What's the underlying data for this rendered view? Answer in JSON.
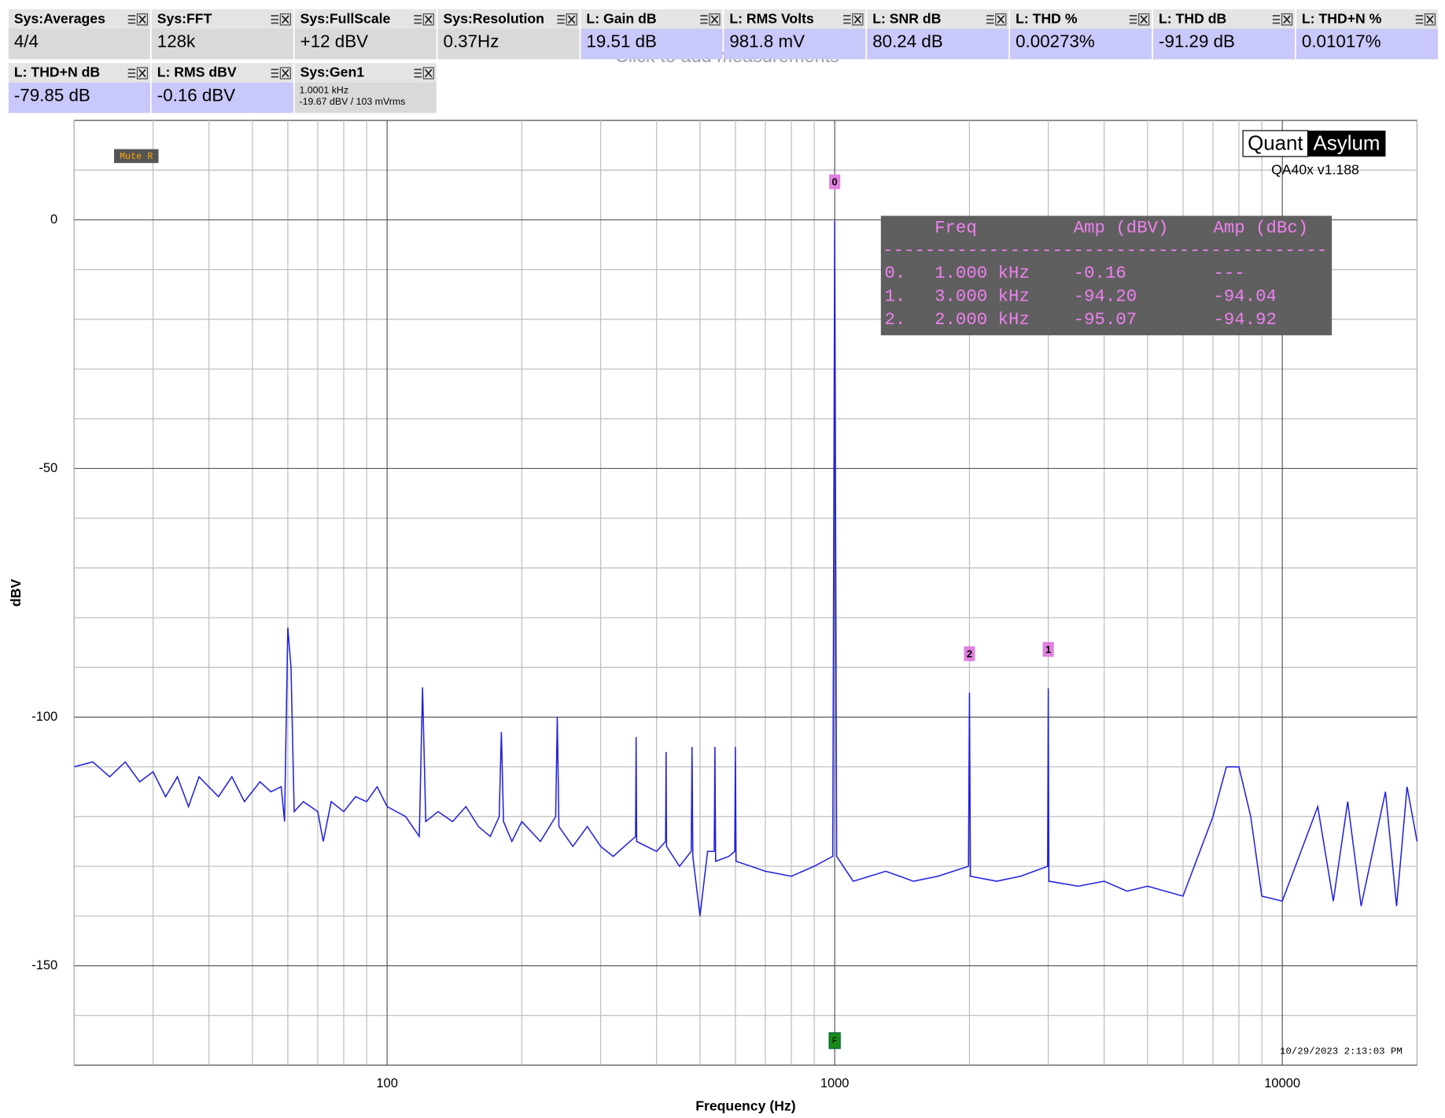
{
  "ghost_text": "Click to add measurements",
  "measurements": [
    [
      {
        "label": "Sys:Averages",
        "value": "4/4",
        "color": "#d9d9d9"
      },
      {
        "label": "Sys:FFT",
        "value": "128k",
        "color": "#d9d9d9"
      },
      {
        "label": "Sys:FullScale",
        "value": "+12 dBV",
        "color": "#d9d9d9"
      },
      {
        "label": "Sys:Resolution",
        "value": "0.37Hz",
        "color": "#d9d9d9"
      },
      {
        "label": "L: Gain dB",
        "value": "19.51 dB",
        "color": "#c8c8fa"
      },
      {
        "label": "L: RMS Volts",
        "value": "981.8 mV",
        "color": "#c8c8fa"
      },
      {
        "label": "L: SNR dB",
        "value": "80.24 dB",
        "color": "#c8c8fa"
      },
      {
        "label": "L: THD %",
        "value": "0.00273%",
        "color": "#c8c8fa"
      },
      {
        "label": "L: THD dB",
        "value": "-91.29 dB",
        "color": "#c8c8fa"
      },
      {
        "label": "L: THD+N %",
        "value": "0.01017%",
        "color": "#c8c8fa"
      }
    ],
    [
      {
        "label": "L: THD+N dB",
        "value": "-79.85 dB",
        "color": "#c8c8fa"
      },
      {
        "label": "L: RMS dBV",
        "value": "-0.16 dBV",
        "color": "#c8c8fa"
      },
      {
        "label": "Sys:Gen1",
        "value_lines": [
          "1.0001 kHz",
          "-19.67 dBV  / 103 mVrms"
        ],
        "color": "#d9d9d9"
      }
    ]
  ],
  "mute_label": "Mute R",
  "logo_left": "Quant",
  "logo_right": "Asylum",
  "version": "QA40x v1.188",
  "timestamp": "10/29/2023 2:13:03 PM",
  "peak_table": {
    "header": [
      "Freq",
      "Amp (dBV)",
      "Amp (dBc)"
    ],
    "separator": "------------------------------------------",
    "rows": [
      [
        "0.",
        "1.000 kHz",
        "-0.16",
        "---"
      ],
      [
        "1.",
        "3.000 kHz",
        "-94.20",
        "-94.04"
      ],
      [
        "2.",
        "2.000 kHz",
        "-95.07",
        "-94.92"
      ]
    ]
  },
  "chart_data": {
    "type": "line",
    "x_label": "Frequency (Hz)",
    "y_label": "dBV",
    "log_x": true,
    "grid": true,
    "color": "#2020e0",
    "xlim": [
      20,
      20000
    ],
    "ylim": [
      -170,
      20
    ],
    "xticks": [
      100,
      1000,
      10000
    ],
    "xminorticks": [
      20,
      30,
      40,
      50,
      60,
      70,
      80,
      90,
      200,
      300,
      400,
      500,
      600,
      700,
      800,
      900,
      2000,
      3000,
      4000,
      5000,
      6000,
      7000,
      8000,
      9000,
      20000
    ],
    "yticks": [
      0,
      -50,
      -100,
      -150
    ],
    "yminorticks": [
      10,
      -10,
      -20,
      -30,
      -40,
      -60,
      -70,
      -80,
      -90,
      -110,
      -120,
      -130,
      -140,
      -160
    ],
    "x": [
      20,
      22,
      24,
      26,
      28,
      30,
      32,
      34,
      36,
      38,
      42,
      45,
      48,
      52,
      55,
      58,
      59,
      60,
      61,
      62,
      65,
      70,
      72,
      75,
      80,
      85,
      90,
      95,
      100,
      110,
      118,
      120,
      122,
      130,
      140,
      150,
      160,
      170,
      178,
      180,
      182,
      190,
      200,
      220,
      238,
      240,
      242,
      260,
      280,
      300,
      320,
      359,
      360,
      361,
      400,
      419,
      420,
      421,
      450,
      478,
      480,
      482,
      500,
      520,
      538,
      540,
      542,
      580,
      598,
      600,
      602,
      650,
      700,
      800,
      900,
      990,
      1000,
      1010,
      1100,
      1300,
      1500,
      1700,
      1990,
      2000,
      2010,
      2300,
      2600,
      2990,
      3000,
      3010,
      3500,
      4000,
      4500,
      5000,
      6000,
      7000,
      7500,
      8000,
      8500,
      9000,
      10000,
      12000,
      13000,
      14000,
      15000,
      17000,
      18000,
      19000,
      20000
    ],
    "values": [
      -110,
      -109,
      -112,
      -109,
      -113,
      -111,
      -116,
      -112,
      -118,
      -112,
      -116,
      -112,
      -117,
      -113,
      -115,
      -114,
      -121,
      -82,
      -90,
      -119,
      -117,
      -119,
      -125,
      -117,
      -119,
      -116,
      -117,
      -114,
      -118,
      -120,
      -124,
      -94,
      -121,
      -119,
      -121,
      -118,
      -122,
      -124,
      -120,
      -103,
      -121,
      -125,
      -121,
      -125,
      -120,
      -100,
      -122,
      -126,
      -122,
      -126,
      -128,
      -124,
      -104,
      -125,
      -127,
      -125,
      -107,
      -126,
      -130,
      -127,
      -106,
      -128,
      -140,
      -127,
      -127,
      -106,
      -129,
      -128,
      -127,
      -106,
      -129,
      -130,
      -131,
      -132,
      -130,
      -128,
      -0.16,
      -128,
      -133,
      -131,
      -133,
      -132,
      -130,
      -95.07,
      -132,
      -133,
      -132,
      -130,
      -94.2,
      -133,
      -134,
      -133,
      -135,
      -134,
      -136,
      -120,
      -110,
      -110,
      -120,
      -136,
      -137,
      -118,
      -137,
      -117,
      -138,
      -115,
      -138,
      -114,
      -125
    ],
    "peak_markers": [
      {
        "label": "0",
        "x": 1000,
        "y": -0.16
      },
      {
        "label": "1",
        "x": 3000,
        "y": -94.2
      },
      {
        "label": "2",
        "x": 2000,
        "y": -95.07
      }
    ],
    "fundamental_marker": {
      "label": "F",
      "x": 1000
    }
  }
}
